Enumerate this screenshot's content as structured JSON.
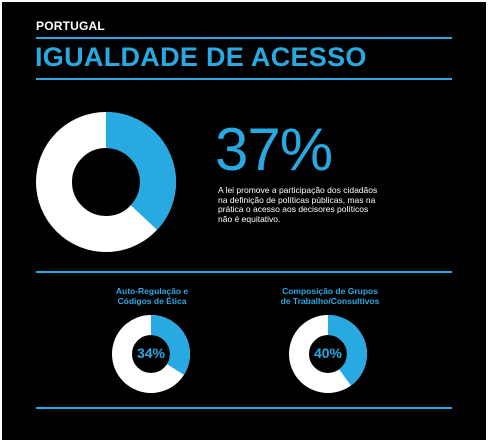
{
  "header": {
    "country": "PORTUGAL",
    "title": "IGUALDADE DE ACESSO"
  },
  "main_stat": {
    "percent": 37,
    "label": "37%",
    "description_lines": [
      "A lei promove a participação dos cidadãos",
      "na definição de políticas públicas, mas na",
      "prática o acesso aos decisores políticos",
      "não é equitativo."
    ]
  },
  "sub_stats": [
    {
      "title_lines": [
        "Auto-Regulação e",
        "Códigos de Ética"
      ],
      "percent": 34,
      "label": "34%"
    },
    {
      "title_lines": [
        "Composição de Grupos",
        "de Trabalho/Consultivos"
      ],
      "percent": 40,
      "label": "40%"
    }
  ],
  "colors": {
    "accent": "#29a9e1",
    "background": "#000000",
    "ring_remainder": "#ffffff",
    "text": "#ffffff"
  }
}
